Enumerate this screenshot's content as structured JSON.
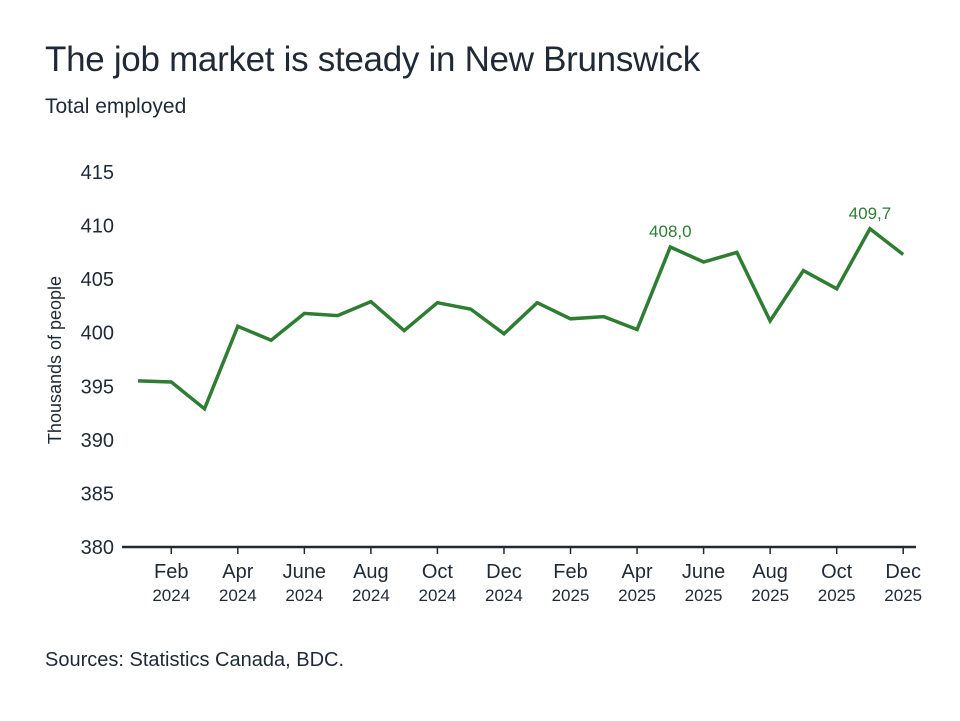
{
  "header": {
    "title": "The job market is steady in New Brunswick",
    "subtitle": "Total employed"
  },
  "footer": {
    "source": "Sources: Statistics Canada, BDC."
  },
  "colors": {
    "line": "#2e7d32",
    "axis": "#1f2a36",
    "text": "#1f2a36"
  },
  "chart_data": {
    "type": "line",
    "title": "The job market is steady in New Brunswick",
    "subtitle": "Total employed",
    "ylabel": "Thousands of people",
    "xlabel": "",
    "ylim": [
      380,
      415
    ],
    "yticks": [
      380,
      385,
      390,
      395,
      400,
      405,
      410,
      415
    ],
    "ytick_labels": [
      "380",
      "385",
      "390",
      "395",
      "400",
      "405",
      "410",
      "415"
    ],
    "grid": false,
    "legend": "none",
    "x": [
      "2024-01",
      "2024-02",
      "2024-03",
      "2024-04",
      "2024-05",
      "2024-06",
      "2024-07",
      "2024-08",
      "2024-09",
      "2024-10",
      "2024-11",
      "2024-12",
      "2025-01",
      "2025-02",
      "2025-03",
      "2025-04",
      "2025-05",
      "2025-06",
      "2025-07",
      "2025-08",
      "2025-09",
      "2025-10",
      "2025-11",
      "2025-12"
    ],
    "xtick_labels": [
      {
        "x": "2024-02",
        "month": "Feb",
        "year": "2024"
      },
      {
        "x": "2024-04",
        "month": "Apr",
        "year": "2024"
      },
      {
        "x": "2024-06",
        "month": "June",
        "year": "2024"
      },
      {
        "x": "2024-08",
        "month": "Aug",
        "year": "2024"
      },
      {
        "x": "2024-10",
        "month": "Oct",
        "year": "2024"
      },
      {
        "x": "2024-12",
        "month": "Dec",
        "year": "2024"
      },
      {
        "x": "2025-02",
        "month": "Feb",
        "year": "2025"
      },
      {
        "x": "2025-04",
        "month": "Apr",
        "year": "2025"
      },
      {
        "x": "2025-06",
        "month": "June",
        "year": "2025"
      },
      {
        "x": "2025-08",
        "month": "Aug",
        "year": "2025"
      },
      {
        "x": "2025-10",
        "month": "Oct",
        "year": "2025"
      },
      {
        "x": "2025-12",
        "month": "Dec",
        "year": "2025"
      }
    ],
    "series": [
      {
        "values": [
          395.5,
          395.4,
          392.9,
          400.6,
          399.3,
          401.8,
          401.6,
          402.9,
          400.2,
          402.8,
          402.2,
          399.9,
          402.8,
          401.3,
          401.5,
          400.3,
          408.0,
          406.6,
          407.5,
          401.1,
          405.8,
          404.1,
          409.7,
          407.3
        ]
      }
    ],
    "annotations": [
      {
        "x": "2025-05",
        "y": 408.0,
        "text": "408,0"
      },
      {
        "x": "2025-11",
        "y": 409.7,
        "text": "409,7"
      }
    ]
  }
}
